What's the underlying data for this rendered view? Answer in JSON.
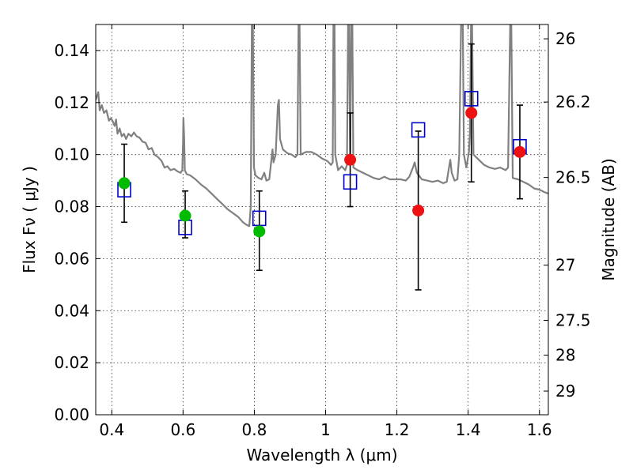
{
  "chart_data": {
    "type": "scatter",
    "xlabel": "Wavelength  λ (μm)",
    "ylabel": "Flux  Fν  ( μJy )",
    "y2label": "Magnitude (AB)",
    "xlim": [
      0.355,
      1.625
    ],
    "ylim": [
      0.0,
      0.15
    ],
    "grid": true,
    "x_ticks": [
      0.4,
      0.6,
      0.8,
      1.0,
      1.2,
      1.4,
      1.6
    ],
    "x_tick_labels": [
      "0.4",
      "0.6",
      "0.8",
      "1",
      "1.2",
      "1.4",
      "1.6"
    ],
    "y_ticks": [
      0.0,
      0.02,
      0.04,
      0.06,
      0.08,
      0.1,
      0.12,
      0.14
    ],
    "y_tick_labels": [
      "0.00",
      "0.02",
      "0.04",
      "0.06",
      "0.08",
      "0.10",
      "0.12",
      "0.14"
    ],
    "y2_ticks": [
      {
        "flux": 0.1445,
        "label": "26"
      },
      {
        "flux": 0.1202,
        "label": "26.2"
      },
      {
        "flux": 0.0912,
        "label": "26.5"
      },
      {
        "flux": 0.0575,
        "label": "27"
      },
      {
        "flux": 0.0363,
        "label": "27.5"
      },
      {
        "flux": 0.0229,
        "label": "28"
      },
      {
        "flux": 0.0091,
        "label": "29"
      }
    ],
    "colors": {
      "spectrum": "#808080",
      "green_points": "#00bb00",
      "red_points": "#ee1111",
      "model_squares": "#0000cc",
      "errorbars": "#000000"
    },
    "series": [
      {
        "marker": "filled-circle-green",
        "points": [
          {
            "x": 0.435,
            "y": 0.089,
            "ylo": 0.074,
            "yhi": 0.104
          },
          {
            "x": 0.606,
            "y": 0.0765,
            "ylo": 0.068,
            "yhi": 0.086
          },
          {
            "x": 0.814,
            "y": 0.0705,
            "ylo": 0.0555,
            "yhi": 0.086
          }
        ]
      },
      {
        "marker": "filled-circle-red",
        "points": [
          {
            "x": 1.069,
            "y": 0.098,
            "ylo": 0.08,
            "yhi": 0.116
          },
          {
            "x": 1.26,
            "y": 0.0785,
            "ylo": 0.048,
            "yhi": 0.109
          },
          {
            "x": 1.409,
            "y": 0.116,
            "ylo": 0.0895,
            "yhi": 0.1425
          },
          {
            "x": 1.545,
            "y": 0.101,
            "ylo": 0.083,
            "yhi": 0.119
          }
        ]
      },
      {
        "marker": "open-square-blue",
        "points": [
          {
            "x": 0.435,
            "y": 0.0865
          },
          {
            "x": 0.606,
            "y": 0.072
          },
          {
            "x": 0.814,
            "y": 0.0755
          },
          {
            "x": 1.069,
            "y": 0.0895
          },
          {
            "x": 1.26,
            "y": 0.1095
          },
          {
            "x": 1.409,
            "y": 0.1215
          },
          {
            "x": 1.545,
            "y": 0.103
          }
        ]
      },
      {
        "marker": "line-spectrum",
        "points": [
          [
            0.355,
            0.121
          ],
          [
            0.362,
            0.124
          ],
          [
            0.366,
            0.117
          ],
          [
            0.372,
            0.119
          ],
          [
            0.378,
            0.116
          ],
          [
            0.385,
            0.117
          ],
          [
            0.392,
            0.113
          ],
          [
            0.397,
            0.114
          ],
          [
            0.402,
            0.113
          ],
          [
            0.408,
            0.111
          ],
          [
            0.412,
            0.1135
          ],
          [
            0.416,
            0.108
          ],
          [
            0.422,
            0.11
          ],
          [
            0.428,
            0.107
          ],
          [
            0.434,
            0.108
          ],
          [
            0.44,
            0.106
          ],
          [
            0.447,
            0.108
          ],
          [
            0.455,
            0.107
          ],
          [
            0.462,
            0.1085
          ],
          [
            0.47,
            0.107
          ],
          [
            0.478,
            0.1065
          ],
          [
            0.486,
            0.105
          ],
          [
            0.495,
            0.1045
          ],
          [
            0.503,
            0.102
          ],
          [
            0.512,
            0.1025
          ],
          [
            0.52,
            0.1
          ],
          [
            0.53,
            0.099
          ],
          [
            0.54,
            0.0975
          ],
          [
            0.548,
            0.095
          ],
          [
            0.556,
            0.0955
          ],
          [
            0.565,
            0.094
          ],
          [
            0.575,
            0.0945
          ],
          [
            0.585,
            0.0935
          ],
          [
            0.593,
            0.093
          ],
          [
            0.598,
            0.094
          ],
          [
            0.6,
            0.104
          ],
          [
            0.601,
            0.114
          ],
          [
            0.603,
            0.107
          ],
          [
            0.605,
            0.094
          ],
          [
            0.61,
            0.0925
          ],
          [
            0.62,
            0.092
          ],
          [
            0.635,
            0.0905
          ],
          [
            0.65,
            0.0885
          ],
          [
            0.665,
            0.087
          ],
          [
            0.68,
            0.085
          ],
          [
            0.695,
            0.083
          ],
          [
            0.71,
            0.081
          ],
          [
            0.725,
            0.079
          ],
          [
            0.74,
            0.0775
          ],
          [
            0.755,
            0.076
          ],
          [
            0.768,
            0.074
          ],
          [
            0.778,
            0.073
          ],
          [
            0.786,
            0.0725
          ],
          [
            0.79,
            0.08
          ],
          [
            0.793,
            0.15
          ],
          [
            0.796,
            0.15
          ],
          [
            0.799,
            0.095
          ],
          [
            0.803,
            0.092
          ],
          [
            0.812,
            0.091
          ],
          [
            0.82,
            0.0905
          ],
          [
            0.828,
            0.093
          ],
          [
            0.834,
            0.09
          ],
          [
            0.842,
            0.0905
          ],
          [
            0.848,
            0.098
          ],
          [
            0.851,
            0.102
          ],
          [
            0.854,
            0.097
          ],
          [
            0.86,
            0.1
          ],
          [
            0.866,
            0.119
          ],
          [
            0.869,
            0.121
          ],
          [
            0.872,
            0.106
          ],
          [
            0.88,
            0.102
          ],
          [
            0.893,
            0.1005
          ],
          [
            0.905,
            0.1
          ],
          [
            0.915,
            0.099
          ],
          [
            0.921,
            0.1
          ],
          [
            0.924,
            0.15
          ],
          [
            0.927,
            0.15
          ],
          [
            0.93,
            0.1
          ],
          [
            0.945,
            0.101
          ],
          [
            0.96,
            0.101
          ],
          [
            0.975,
            0.1
          ],
          [
            0.99,
            0.0985
          ],
          [
            1.005,
            0.0975
          ],
          [
            1.015,
            0.096
          ],
          [
            1.02,
            0.097
          ],
          [
            1.022,
            0.15
          ],
          [
            1.025,
            0.15
          ],
          [
            1.027,
            0.1
          ],
          [
            1.035,
            0.094
          ],
          [
            1.045,
            0.0955
          ],
          [
            1.055,
            0.094
          ],
          [
            1.06,
            0.096
          ],
          [
            1.063,
            0.15
          ],
          [
            1.066,
            0.15
          ],
          [
            1.069,
            0.096
          ],
          [
            1.072,
            0.15
          ],
          [
            1.075,
            0.15
          ],
          [
            1.078,
            0.095
          ],
          [
            1.09,
            0.094
          ],
          [
            1.105,
            0.093
          ],
          [
            1.12,
            0.092
          ],
          [
            1.135,
            0.091
          ],
          [
            1.15,
            0.0905
          ],
          [
            1.165,
            0.0915
          ],
          [
            1.18,
            0.0905
          ],
          [
            1.195,
            0.0905
          ],
          [
            1.21,
            0.0905
          ],
          [
            1.225,
            0.09
          ],
          [
            1.235,
            0.0915
          ],
          [
            1.245,
            0.095
          ],
          [
            1.25,
            0.097
          ],
          [
            1.256,
            0.093
          ],
          [
            1.27,
            0.0905
          ],
          [
            1.285,
            0.09
          ],
          [
            1.3,
            0.0895
          ],
          [
            1.315,
            0.09
          ],
          [
            1.33,
            0.089
          ],
          [
            1.34,
            0.0895
          ],
          [
            1.345,
            0.094
          ],
          [
            1.35,
            0.098
          ],
          [
            1.354,
            0.093
          ],
          [
            1.362,
            0.09
          ],
          [
            1.37,
            0.0905
          ],
          [
            1.375,
            0.1
          ],
          [
            1.38,
            0.15
          ],
          [
            1.385,
            0.15
          ],
          [
            1.388,
            0.1
          ],
          [
            1.395,
            0.095
          ],
          [
            1.402,
            0.101
          ],
          [
            1.405,
            0.108
          ],
          [
            1.408,
            0.15
          ],
          [
            1.411,
            0.15
          ],
          [
            1.415,
            0.1
          ],
          [
            1.43,
            0.098
          ],
          [
            1.445,
            0.096
          ],
          [
            1.46,
            0.095
          ],
          [
            1.475,
            0.0945
          ],
          [
            1.49,
            0.095
          ],
          [
            1.505,
            0.094
          ],
          [
            1.512,
            0.095
          ],
          [
            1.518,
            0.15
          ],
          [
            1.521,
            0.15
          ],
          [
            1.525,
            0.091
          ],
          [
            1.54,
            0.0905
          ],
          [
            1.555,
            0.0895
          ],
          [
            1.57,
            0.0885
          ],
          [
            1.585,
            0.087
          ],
          [
            1.6,
            0.0865
          ],
          [
            1.615,
            0.0855
          ],
          [
            1.625,
            0.085
          ]
        ]
      }
    ]
  }
}
